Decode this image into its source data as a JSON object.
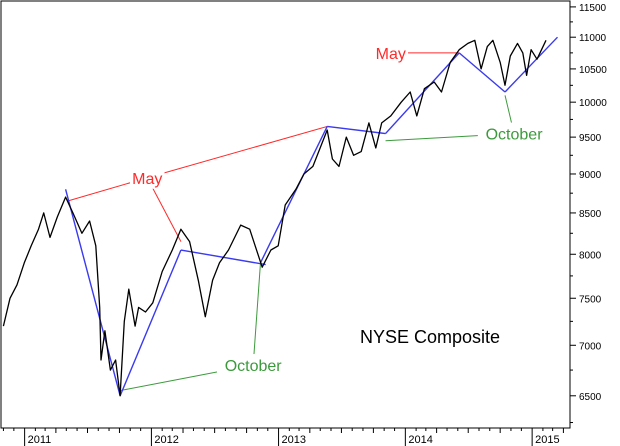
{
  "chart_data": {
    "type": "line",
    "title": "NYSE Composite",
    "xlabel": "",
    "ylabel": "",
    "x_ticks": [
      "2011",
      "2012",
      "2013",
      "2014",
      "2015"
    ],
    "y_ticks": [
      6500,
      7000,
      7500,
      8000,
      8500,
      9000,
      9500,
      10000,
      10500,
      11000,
      11500
    ],
    "ylim": [
      6200,
      11600
    ],
    "grid": false,
    "series": [
      {
        "name": "",
        "x": [
          "2010-11-01",
          "2010-11-20",
          "2010-12-10",
          "2010-12-31",
          "2011-01-20",
          "2011-02-10",
          "2011-02-25",
          "2011-03-15",
          "2011-04-05",
          "2011-04-29",
          "2011-05-20",
          "2011-06-15",
          "2011-07-07",
          "2011-07-25",
          "2011-08-05",
          "2011-08-09",
          "2011-08-20",
          "2011-09-05",
          "2011-09-20",
          "2011-10-03",
          "2011-10-15",
          "2011-10-28",
          "2011-11-15",
          "2011-11-25",
          "2011-12-15",
          "2012-01-05",
          "2012-02-01",
          "2012-03-01",
          "2012-03-26",
          "2012-04-20",
          "2012-05-15",
          "2012-06-04",
          "2012-06-25",
          "2012-07-15",
          "2012-08-10",
          "2012-09-14",
          "2012-10-10",
          "2012-11-15",
          "2012-12-10",
          "2012-12-31",
          "2013-01-20",
          "2013-02-20",
          "2013-03-15",
          "2013-04-10",
          "2013-05-21",
          "2013-06-05",
          "2013-06-24",
          "2013-07-15",
          "2013-08-05",
          "2013-08-27",
          "2013-09-18",
          "2013-10-08",
          "2013-10-25",
          "2013-11-20",
          "2013-12-20",
          "2014-01-15",
          "2014-02-03",
          "2014-02-25",
          "2014-03-25",
          "2014-04-15",
          "2014-05-10",
          "2014-06-05",
          "2014-06-30",
          "2014-07-20",
          "2014-08-07",
          "2014-08-25",
          "2014-09-10",
          "2014-10-01",
          "2014-10-15",
          "2014-10-30",
          "2014-11-20",
          "2014-12-05",
          "2014-12-16",
          "2014-12-29",
          "2015-01-15",
          "2015-02-10"
        ],
        "values": [
          7200,
          7500,
          7650,
          7900,
          8100,
          8300,
          8500,
          8200,
          8450,
          8700,
          8500,
          8250,
          8400,
          8100,
          7400,
          6850,
          7150,
          6750,
          6850,
          6500,
          7250,
          7600,
          7200,
          7400,
          7350,
          7450,
          7800,
          8050,
          8300,
          8150,
          7700,
          7300,
          7700,
          7900,
          8050,
          8350,
          8300,
          7850,
          8050,
          8100,
          8600,
          8800,
          9000,
          9100,
          9600,
          9200,
          9100,
          9500,
          9250,
          9300,
          9700,
          9350,
          9700,
          9800,
          10000,
          10150,
          9800,
          10200,
          10300,
          10150,
          10600,
          10800,
          10900,
          10950,
          10500,
          10850,
          10950,
          10600,
          10250,
          10700,
          10900,
          10750,
          10400,
          10800,
          10650,
          10950
        ]
      }
    ],
    "trendlines": [
      {
        "from": [
          "2011-04-29",
          8800
        ],
        "to": [
          "2011-10-03",
          6500
        ]
      },
      {
        "from": [
          "2011-10-03",
          6500
        ],
        "to": [
          "2012-03-26",
          8050
        ]
      },
      {
        "from": [
          "2012-03-26",
          8050
        ],
        "to": [
          "2012-11-25",
          7880
        ]
      },
      {
        "from": [
          "2012-11-10",
          7900
        ],
        "to": [
          "2013-05-21",
          9650
        ]
      },
      {
        "from": [
          "2013-05-21",
          9650
        ],
        "to": [
          "2013-11-05",
          9550
        ]
      },
      {
        "from": [
          "2013-11-05",
          9550
        ],
        "to": [
          "2014-06-05",
          10750
        ]
      },
      {
        "from": [
          "2014-06-05",
          10750
        ],
        "to": [
          "2014-10-15",
          10150
        ]
      },
      {
        "from": [
          "2014-10-15",
          10150
        ],
        "to": [
          "2015-03-15",
          11000
        ]
      }
    ],
    "annotations": [
      {
        "text": "May",
        "color": "#ff2a2a",
        "at": [
          "2011-12-20",
          8950
        ],
        "pointers": [
          [
            "2011-05-05",
            8650
          ],
          [
            "2012-03-26",
            8150
          ],
          [
            "2013-05-21",
            9650
          ]
        ]
      },
      {
        "text": "May",
        "color": "#ff2a2a",
        "at": [
          "2013-11-20",
          10750
        ],
        "pointers": [
          [
            "2014-06-05",
            10750
          ]
        ]
      },
      {
        "text": "October",
        "color": "#3c9a3c",
        "at": [
          "2012-10-20",
          6800
        ],
        "pointers": [
          [
            "2011-10-03",
            6550
          ],
          [
            "2012-11-10",
            7900
          ]
        ]
      },
      {
        "text": "October",
        "color": "#3c9a3c",
        "at": [
          "2014-11-10",
          9550
        ],
        "pointers": [
          [
            "2013-11-05",
            9450
          ],
          [
            "2014-10-15",
            10100
          ]
        ]
      }
    ],
    "series_color": "#000000",
    "trendline_color": "#3a3aee"
  }
}
